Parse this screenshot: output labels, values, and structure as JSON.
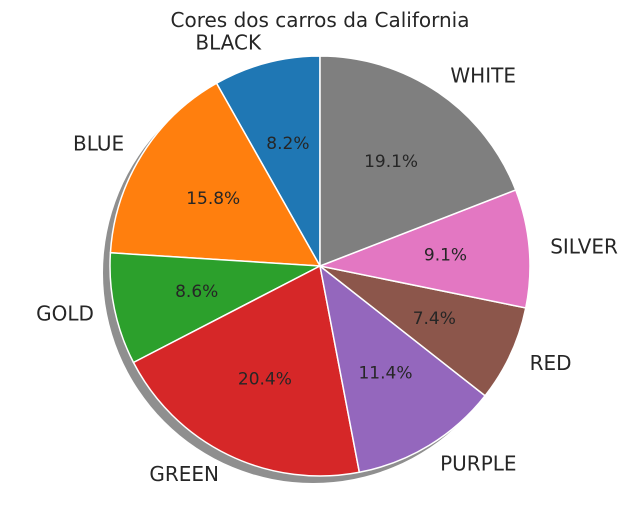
{
  "chart_data": {
    "type": "pie",
    "title": "Cores dos carros da California",
    "slices": [
      {
        "label": "BLACK",
        "value": 8.2,
        "pct_text": "8.2%",
        "color": "#1f77b4"
      },
      {
        "label": "BLUE",
        "value": 15.8,
        "pct_text": "15.8%",
        "color": "#ff7f0e"
      },
      {
        "label": "GOLD",
        "value": 8.6,
        "pct_text": "8.6%",
        "color": "#2ca02c"
      },
      {
        "label": "GREEN",
        "value": 20.4,
        "pct_text": "20.4%",
        "color": "#d62728"
      },
      {
        "label": "PURPLE",
        "value": 11.4,
        "pct_text": "11.4%",
        "color": "#9467bd"
      },
      {
        "label": "RED",
        "value": 7.4,
        "pct_text": "7.4%",
        "color": "#8c564b"
      },
      {
        "label": "SILVER",
        "value": 9.1,
        "pct_text": "9.1%",
        "color": "#e377c2"
      },
      {
        "label": "WHITE",
        "value": 19.1,
        "pct_text": "19.1%",
        "color": "#7f7f7f"
      }
    ],
    "start_angle": "top (90°)",
    "direction": "counterclockwise",
    "shadow": true,
    "legend": "none"
  }
}
